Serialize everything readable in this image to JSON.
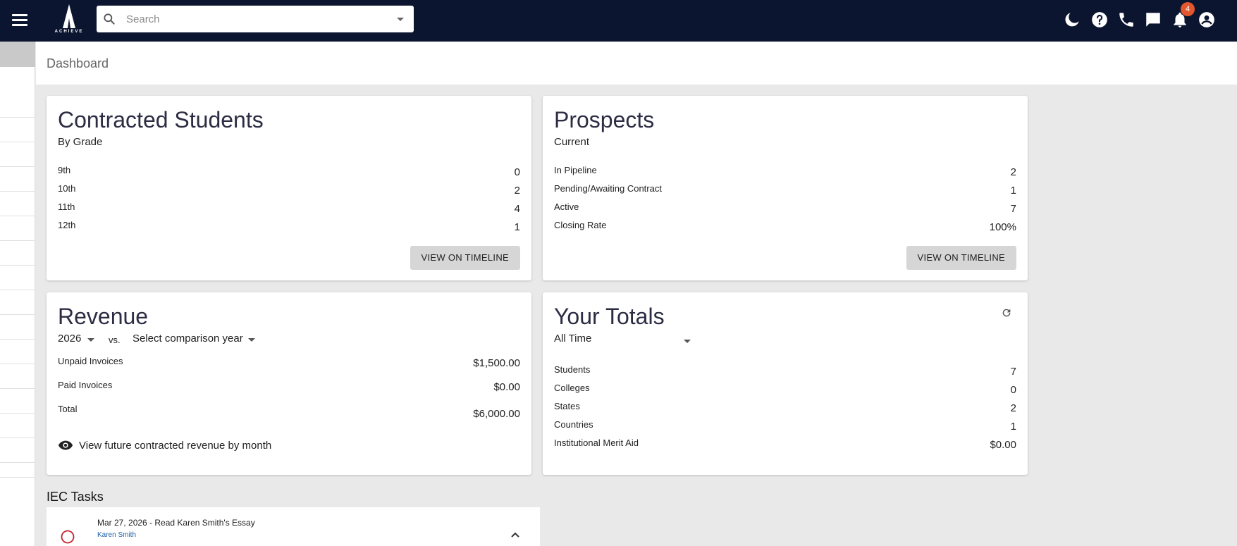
{
  "app": {
    "logo_text": "ACHIEVE",
    "notification_count": "4"
  },
  "search": {
    "placeholder": "Search",
    "value": ""
  },
  "top_icons": [
    "moon-icon",
    "help-icon",
    "phone-icon",
    "chat-icon",
    "bell-icon",
    "account-icon"
  ],
  "page": {
    "title": "Dashboard"
  },
  "contracted": {
    "title": "Contracted Students",
    "subtitle": "By Grade",
    "rows": [
      {
        "label": "9th",
        "value": "0"
      },
      {
        "label": "10th",
        "value": "2"
      },
      {
        "label": "11th",
        "value": "4"
      },
      {
        "label": "12th",
        "value": "1"
      }
    ],
    "button": "VIEW ON TIMELINE"
  },
  "prospects": {
    "title": "Prospects",
    "subtitle": "Current",
    "rows": [
      {
        "label": "In Pipeline",
        "value": "2"
      },
      {
        "label": "Pending/Awaiting Contract",
        "value": "1"
      },
      {
        "label": "Active",
        "value": "7"
      },
      {
        "label": "Closing Rate",
        "value": "100%"
      }
    ],
    "button": "VIEW ON TIMELINE"
  },
  "revenue": {
    "title": "Revenue",
    "year": "2026",
    "vs": "vs.",
    "comparison": "Select comparison year",
    "rows": [
      {
        "label": "Unpaid Invoices",
        "value": "$1,500.00"
      },
      {
        "label": "Paid Invoices",
        "value": "$0.00"
      },
      {
        "label": "Total",
        "value": "$6,000.00"
      }
    ],
    "future_link": "View future contracted revenue by month"
  },
  "totals": {
    "title": "Your Totals",
    "period": "All Time",
    "rows": [
      {
        "label": "Students",
        "value": "7"
      },
      {
        "label": "Colleges",
        "value": "0"
      },
      {
        "label": "States",
        "value": "2"
      },
      {
        "label": "Countries",
        "value": "1"
      },
      {
        "label": "Institutional Merit Aid",
        "value": "$0.00"
      }
    ]
  },
  "tasks": {
    "title": "IEC Tasks",
    "items": [
      {
        "title": "Mar 27, 2026 - Read Karen Smith's Essay",
        "student": "Karen Smith"
      }
    ]
  },
  "colors": {
    "topbar": "#0c1530",
    "badge": "#e4572e",
    "task_circle": "#c0202b",
    "link": "#1e5fa8"
  }
}
